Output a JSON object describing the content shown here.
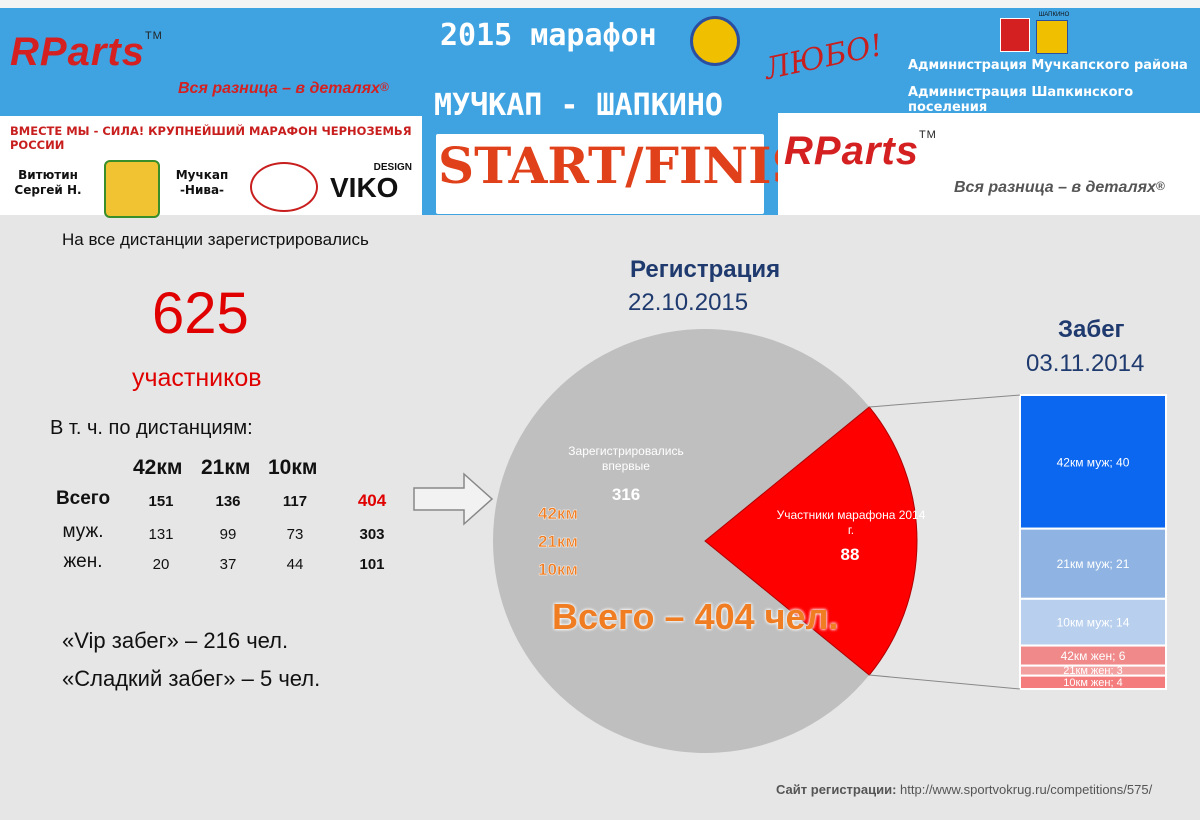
{
  "header": {
    "brand": "RParts",
    "tm": "TM",
    "slogan": "Вся разница – в деталях",
    "slogan_mark": "®",
    "banner": "ВМЕСТЕ МЫ - СИЛА! КРУПНЕЙШИЙ МАРАФОН ЧЕРНОЗЕМЬЯ РОССИИ",
    "sponsors": [
      {
        "line1": "Витютин",
        "line2": "Сергей Н."
      },
      {
        "line1": "Мучкап",
        "line2": "-Нива-"
      }
    ],
    "viko_small": "DESIGN",
    "viko": "VIKO",
    "title_line1": "2015 марафон",
    "title_line2": "МУЧКАП - ШАПКИНО",
    "title_line3": "START/FINISH",
    "lyubo": "ЛЮБО!",
    "crest_label": "ШАПКИНО",
    "admin1": "Администрация Мучкапского района",
    "admin2": "Администрация Шапкинского поселения"
  },
  "left": {
    "intro": "На все дистанции зарегистрировались",
    "total": "625",
    "total_label": "участников",
    "by_distance": "В т. ч. по дистанциям:",
    "columns": [
      "42км",
      "21км",
      "10км"
    ],
    "rows": [
      {
        "label": "Всего",
        "values": [
          "151",
          "136",
          "117"
        ],
        "sum": "404"
      },
      {
        "label": "муж.",
        "values": [
          "131",
          "99",
          "73"
        ],
        "sum": "303"
      },
      {
        "label": "жен.",
        "values": [
          "20",
          "37",
          "44"
        ],
        "sum": "101"
      }
    ],
    "vip": "«Vip забег» – 216 чел.",
    "sweet": "«Сладкий забег» – 5 чел."
  },
  "chart_data": [
    {
      "type": "pie",
      "title": "Регистрация",
      "subtitle": "22.10.2015",
      "slices": [
        {
          "label": "Зарегистрировались впервые",
          "value": 316,
          "color": "#bfbfbf"
        },
        {
          "label": "Участники марафона 2014 г.",
          "value": 88,
          "color": "#ff0000"
        }
      ],
      "side_labels": [
        "42км",
        "21км",
        "10км"
      ],
      "center_text": "Всего – 404 чел."
    },
    {
      "type": "bar",
      "stacked": true,
      "title": "Забег",
      "subtitle": "03.11.2014",
      "segments": [
        {
          "label": "42км муж; 40",
          "value": 40,
          "color": "#0b66f0"
        },
        {
          "label": "21км муж; 21",
          "value": 21,
          "color": "#8fb4e3"
        },
        {
          "label": "10км муж; 14",
          "value": 14,
          "color": "#b8d0ee"
        },
        {
          "label": "42км жен; 6",
          "value": 6,
          "color": "#f08a8a"
        },
        {
          "label": "21км жен; 3",
          "value": 3,
          "color": "#f2a0a0"
        },
        {
          "label": "10км жен; 4",
          "value": 4,
          "color": "#f47c7c"
        }
      ]
    }
  ],
  "footer": {
    "site_label": "Сайт регистрации:",
    "site_url": "http://www.sportvokrug.ru/competitions/575/"
  }
}
